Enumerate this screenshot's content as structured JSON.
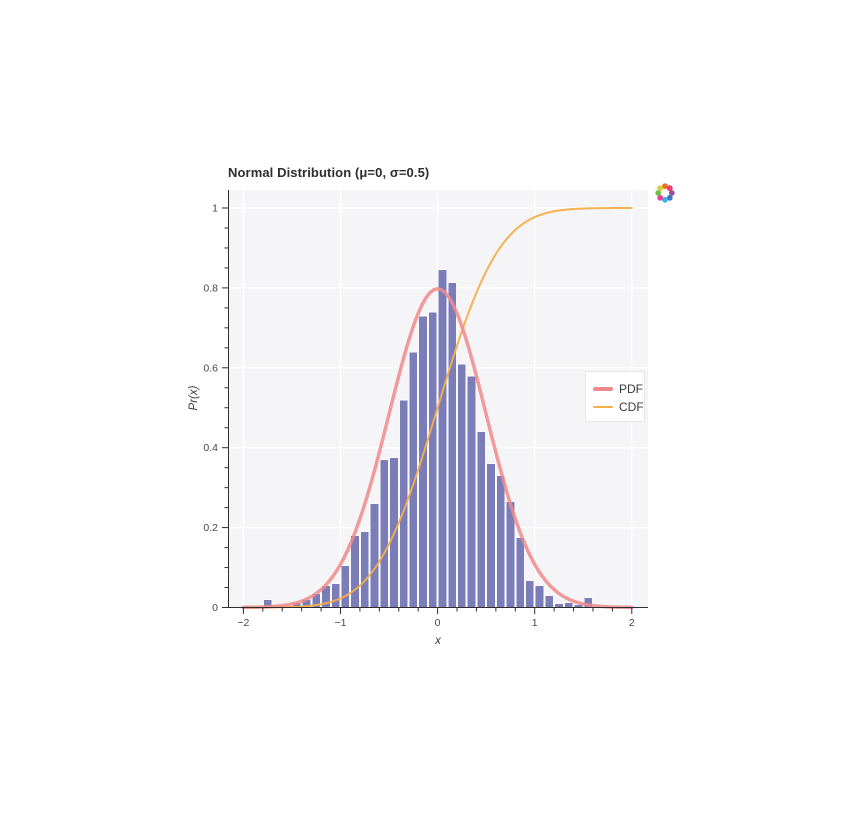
{
  "header": {
    "title": "Normal Distribution (μ=0, σ=0.5)"
  },
  "axes": {
    "x": {
      "label": "x",
      "major_ticks": [
        -2,
        -1,
        0,
        1,
        2
      ],
      "tick_labels": [
        "−2",
        "−1",
        "0",
        "1",
        "2"
      ],
      "minor_step": 0.2,
      "range": [
        -2.16,
        2.16
      ]
    },
    "y": {
      "label": "Pr(x)",
      "major_ticks": [
        0,
        0.2,
        0.4,
        0.6,
        0.8,
        1
      ],
      "tick_labels": [
        "0",
        "0.2",
        "0.4",
        "0.6",
        "0.8",
        "1"
      ],
      "minor_step": 0.05,
      "range": [
        0,
        1.046
      ]
    }
  },
  "legend": {
    "items": [
      {
        "label": "PDF",
        "color": "#f0898c",
        "line_width": 4
      },
      {
        "label": "CDF",
        "color": "#f5ae49",
        "line_width": 2.5
      }
    ]
  },
  "colors": {
    "panel_bg": "#f5f5f7",
    "grid": "#ffffff",
    "bar_fill": "#7a7db8",
    "bar_edge": "#fafafc",
    "pdf_line": "#f0898c",
    "cdf_line": "#f5ae49",
    "axis_line": "#2e2e2e",
    "tick_label": "#474747"
  },
  "logo": {
    "name": "bokeh-logo",
    "dot_colors": [
      "#f26d21",
      "#ed3a6f",
      "#9a4f9e",
      "#4178bc",
      "#35b5e8",
      "#e83e9c",
      "#71bf44",
      "#d6cf3f"
    ]
  },
  "chart_data": {
    "type": "bar",
    "subtype": "histogram-with-curves",
    "title": "Normal Distribution (μ=0, σ=0.5)",
    "xlabel": "x",
    "ylabel": "Pr(x)",
    "xlim": [
      -2.16,
      2.16
    ],
    "ylim": [
      0,
      1.046
    ],
    "grid": "white-on-gray, major ticks only",
    "legend_position": "center-right",
    "distribution": {
      "mu": 0,
      "sigma": 0.5,
      "pdf_peak": 0.798
    },
    "histogram": {
      "bin_start": -1.8,
      "bin_width": 0.1,
      "densities": [
        0.02,
        0,
        0,
        0.012,
        0.02,
        0.035,
        0.055,
        0.06,
        0.105,
        0.18,
        0.19,
        0.26,
        0.37,
        0.375,
        0.52,
        0.64,
        0.73,
        0.74,
        0.846,
        0.813,
        0.61,
        0.58,
        0.44,
        0.36,
        0.33,
        0.265,
        0.175,
        0.068,
        0.055,
        0.03,
        0.01,
        0.012,
        0.008,
        0.025
      ]
    },
    "series": [
      {
        "name": "PDF",
        "formula": "normal_pdf(mu=0,sigma=0.5)",
        "x_range": [
          -2,
          2
        ]
      },
      {
        "name": "CDF",
        "formula": "normal_cdf(mu=0,sigma=0.5)",
        "x_range": [
          -2,
          2
        ]
      }
    ]
  }
}
